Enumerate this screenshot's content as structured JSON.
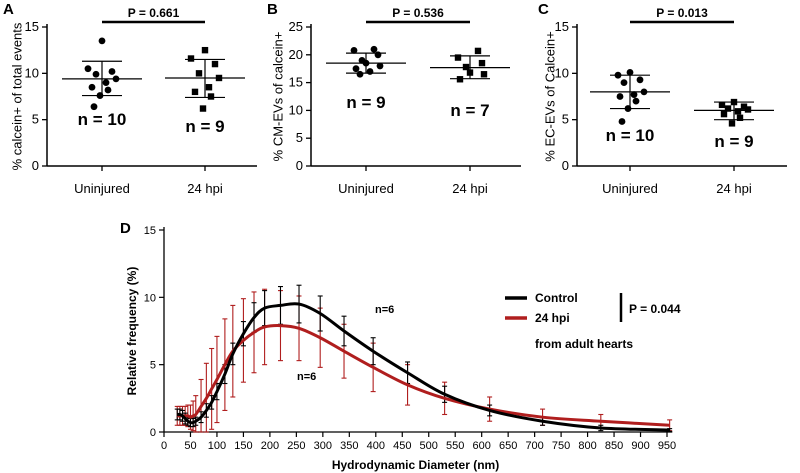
{
  "chart_data": [
    {
      "panel": "A",
      "type": "scatter",
      "ylabel": "% calcein+ of total events",
      "ylim": [
        0,
        15
      ],
      "yticks": [
        0,
        5,
        10,
        15
      ],
      "categories": [
        "Uninjured",
        "24 hpi"
      ],
      "p_value": "P = 0.661",
      "n_labels": [
        "n = 10",
        "n = 9"
      ],
      "series": [
        {
          "values": [
            13.5,
            10.5,
            10.2,
            9.9,
            9.4,
            9.0,
            8.5,
            8.2,
            7.6,
            6.4
          ],
          "mean": 9.4,
          "sd_low": 7.6,
          "sd_high": 11.3
        },
        {
          "values": [
            12.5,
            11.6,
            11.0,
            10.0,
            9.5,
            8.5,
            8.0,
            7.5,
            6.2
          ],
          "mean": 9.5,
          "sd_low": 7.4,
          "sd_high": 11.5
        }
      ]
    },
    {
      "panel": "B",
      "type": "scatter",
      "ylabel": "% CM-EVs of calcein+",
      "ylim": [
        0,
        25
      ],
      "yticks": [
        0,
        5,
        10,
        15,
        20,
        25
      ],
      "categories": [
        "Uninjured",
        "24 hpi"
      ],
      "p_value": "P = 0.536",
      "n_labels": [
        "n = 9",
        "n = 7"
      ],
      "series": [
        {
          "values": [
            21.0,
            20.8,
            20.0,
            19.0,
            18.5,
            18.0,
            17.5,
            17.0,
            16.5
          ],
          "mean": 18.5,
          "sd_low": 16.7,
          "sd_high": 20.3
        },
        {
          "values": [
            20.7,
            19.5,
            18.5,
            17.8,
            16.8,
            16.5,
            15.6
          ],
          "mean": 17.7,
          "sd_low": 15.7,
          "sd_high": 19.8
        }
      ]
    },
    {
      "panel": "C",
      "type": "scatter",
      "ylabel": "% EC-EVs of Calcein+",
      "ylim": [
        0,
        15
      ],
      "yticks": [
        0,
        5,
        10,
        15
      ],
      "categories": [
        "Uninjured",
        "24 hpi"
      ],
      "p_value": "P = 0.013",
      "n_labels": [
        "n = 10",
        "n = 9"
      ],
      "series": [
        {
          "values": [
            10.1,
            9.8,
            9.3,
            9.0,
            8.0,
            7.7,
            7.5,
            7.0,
            6.2,
            4.8
          ],
          "mean": 8.0,
          "sd_low": 6.2,
          "sd_high": 9.8
        },
        {
          "values": [
            6.9,
            6.6,
            6.4,
            6.2,
            6.1,
            5.9,
            5.6,
            5.2,
            4.6
          ],
          "mean": 6.0,
          "sd_low": 5.0,
          "sd_high": 6.9
        }
      ]
    },
    {
      "panel": "D",
      "type": "line",
      "xlabel": "Hydrodynamic Diameter (nm)",
      "ylabel": "Relative frequency (%)",
      "xlim": [
        0,
        960
      ],
      "ylim": [
        0,
        15
      ],
      "xticks": [
        0,
        50,
        100,
        150,
        200,
        250,
        300,
        350,
        400,
        450,
        500,
        550,
        600,
        650,
        700,
        750,
        800,
        850,
        900,
        950
      ],
      "yticks": [
        0,
        5,
        10,
        15
      ],
      "legend": [
        "Control",
        "24 hpi"
      ],
      "legend_note": "from adult hearts",
      "p_value": "P = 0.044",
      "n_labels": [
        "n=6",
        "n=6"
      ],
      "series": [
        {
          "name": "Control",
          "color": "#000000",
          "x": [
            25,
            30,
            35,
            40,
            45,
            50,
            55,
            60,
            70,
            80,
            90,
            100,
            115,
            130,
            150,
            170,
            190,
            220,
            255,
            295,
            340,
            395,
            460,
            530,
            615,
            715,
            825,
            955
          ],
          "y": [
            1.3,
            1.3,
            1.2,
            1.0,
            0.8,
            0.7,
            0.7,
            0.8,
            1.1,
            1.6,
            2.2,
            3.0,
            4.3,
            5.8,
            7.3,
            8.5,
            9.2,
            9.4,
            9.5,
            8.8,
            7.5,
            6.0,
            4.4,
            2.8,
            1.6,
            0.8,
            0.3,
            0.15
          ],
          "err": [
            0.4,
            0.4,
            0.4,
            0.4,
            0.3,
            0.3,
            0.3,
            0.3,
            0.4,
            0.5,
            0.5,
            0.6,
            0.7,
            0.8,
            0.9,
            1.1,
            1.3,
            1.4,
            1.4,
            1.3,
            1.1,
            1.0,
            0.8,
            0.6,
            0.4,
            0.3,
            0.2,
            0.1
          ]
        },
        {
          "name": "24 hpi",
          "color": "#b01e1e",
          "x": [
            25,
            30,
            35,
            40,
            45,
            50,
            55,
            60,
            70,
            80,
            90,
            100,
            115,
            130,
            150,
            170,
            190,
            220,
            255,
            295,
            340,
            395,
            460,
            530,
            615,
            715,
            825,
            955
          ],
          "y": [
            1.2,
            1.2,
            1.2,
            1.2,
            1.2,
            1.1,
            1.2,
            1.3,
            1.9,
            2.5,
            3.2,
            3.9,
            5.0,
            6.0,
            6.8,
            7.4,
            7.8,
            7.9,
            7.7,
            7.0,
            6.0,
            4.8,
            3.5,
            2.5,
            1.7,
            1.1,
            0.8,
            0.5
          ],
          "err": [
            0.7,
            0.7,
            0.7,
            0.7,
            0.8,
            0.9,
            1.1,
            1.4,
            2.0,
            2.6,
            3.0,
            3.2,
            3.4,
            3.4,
            3.1,
            3.0,
            2.8,
            2.6,
            2.4,
            2.2,
            2.0,
            1.8,
            1.5,
            1.2,
            0.9,
            0.6,
            0.5,
            0.4
          ]
        }
      ]
    }
  ]
}
